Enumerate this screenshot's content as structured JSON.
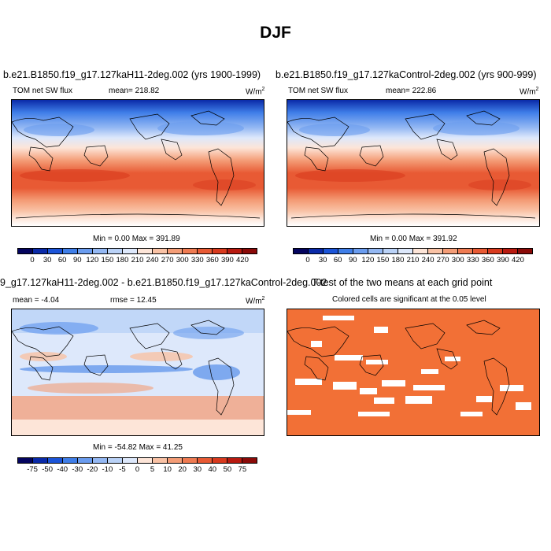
{
  "figure": {
    "title": "DJF"
  },
  "panels": [
    {
      "title": "b.e21.B1850.f19_g17.127kaH11-2deg.002 (yrs 1900-1999)",
      "left_label": "TOM net SW flux",
      "center_label": "mean= 218.82",
      "units": "W/m",
      "units_sup": "2",
      "minmax": "Min =   0.00 Max = 391.89"
    },
    {
      "title": "b.e21.B1850.f19_g17.127kaControl-2deg.002 (yrs 900-999)",
      "left_label": "TOM net SW flux",
      "center_label": "mean= 222.86",
      "units": "W/m",
      "units_sup": "2",
      "minmax": "Min =   0.00 Max = 391.92"
    },
    {
      "title": "9_g17.127kaH11-2deg.002 - b.e21.B1850.f19_g17.127kaControl-2deg.002",
      "left_label": "mean = -4.04",
      "center_label": "rmse =  12.45",
      "units": "W/m",
      "units_sup": "2",
      "minmax": "Min = -54.82 Max =  41.25"
    },
    {
      "title": "T-test of the two means at each grid point",
      "subtitle": "Colored cells are significant at the 0.05 level"
    }
  ],
  "colorbar_abs": {
    "colors": [
      "#04045e",
      "#0a2aa8",
      "#1b54d8",
      "#3f7ee8",
      "#6a9cef",
      "#94b8f3",
      "#bad2f7",
      "#dde8fb",
      "#fde5d8",
      "#f9c2a5",
      "#f49d77",
      "#ef7b52",
      "#e85a34",
      "#d83a1e",
      "#b81a10",
      "#8a0a08"
    ],
    "labels": [
      "0",
      "30",
      "60",
      "90",
      "120",
      "150",
      "180",
      "210",
      "240",
      "270",
      "300",
      "330",
      "360",
      "390",
      "420"
    ]
  },
  "colorbar_diff": {
    "colors": [
      "#04045e",
      "#0a2aa8",
      "#1b54d8",
      "#3f7ee8",
      "#6a9cef",
      "#94b8f3",
      "#bad2f7",
      "#dde8fb",
      "#fde5d8",
      "#f9c2a5",
      "#f49d77",
      "#ef7b52",
      "#e85a34",
      "#d83a1e",
      "#b81a10",
      "#8a0a08"
    ],
    "labels": [
      "-75",
      "-50",
      "-40",
      "-30",
      "-20",
      "-10",
      "-5",
      "0",
      "5",
      "10",
      "20",
      "30",
      "40",
      "50",
      "75"
    ]
  },
  "colors": {
    "significant": "#f27036",
    "not_significant": "#ffffff"
  }
}
